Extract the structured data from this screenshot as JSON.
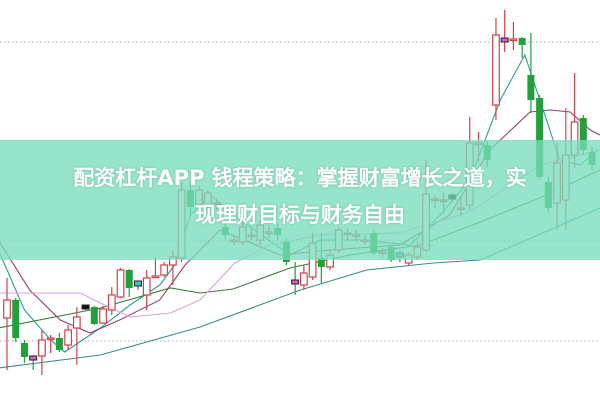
{
  "title": {
    "line1": "配资杠杆APP 钱程策略：掌握财富增长之道，实",
    "line2": "现理财目标与财务自由"
  },
  "colors": {
    "up": "#d8404c",
    "down": "#22a03c",
    "band": "#8fe0c8",
    "title_text": "#ffffff",
    "grid": "#aaaaaa"
  },
  "chart_data": {
    "type": "candlestick",
    "title": "",
    "xlabel": "",
    "ylabel": "",
    "ylim": [
      0,
      400
    ],
    "grid": "horizontal-dotted",
    "grid_levels": [
      358,
      259,
      159,
      59
    ],
    "candles": [
      [
        82,
        122,
        30,
        100
      ],
      [
        100,
        102,
        58,
        62
      ],
      [
        57,
        60,
        37,
        43
      ],
      [
        42,
        45,
        30,
        41,
        "pink"
      ],
      [
        44,
        70,
        25,
        60
      ],
      [
        61,
        65,
        47,
        62
      ],
      [
        62,
        67,
        48,
        50
      ],
      [
        55,
        75,
        50,
        70
      ],
      [
        72,
        93,
        35,
        83
      ],
      [
        93,
        95,
        90,
        92,
        "black"
      ],
      [
        93,
        94,
        75,
        76
      ],
      [
        77,
        94,
        76,
        91
      ],
      [
        90,
        113,
        85,
        105
      ],
      [
        103,
        132,
        102,
        130
      ],
      [
        130,
        131,
        103,
        112
      ],
      [
        117,
        118,
        110,
        112,
        "cyan"
      ],
      [
        105,
        130,
        90,
        122
      ],
      [
        123,
        143,
        122,
        124
      ],
      [
        125,
        138,
        123,
        135
      ],
      [
        135,
        150,
        115,
        143
      ],
      [
        142,
        218,
        138,
        210
      ],
      [
        210,
        218,
        185,
        193
      ],
      [
        195,
        215,
        190,
        210
      ],
      [
        195,
        210,
        190,
        207
      ],
      [
        197,
        202,
        190,
        197
      ],
      [
        173,
        178,
        160,
        165
      ],
      [
        160,
        165,
        155,
        160
      ],
      [
        158,
        178,
        155,
        173
      ],
      [
        165,
        172,
        160,
        165
      ],
      [
        160,
        180,
        155,
        175
      ],
      [
        168,
        175,
        162,
        168
      ],
      [
        172,
        176,
        160,
        165
      ],
      [
        158,
        162,
        135,
        138
      ],
      [
        118,
        138,
        105,
        117,
        "pink"
      ],
      [
        115,
        135,
        110,
        127
      ],
      [
        123,
        167,
        120,
        157
      ],
      [
        142,
        167,
        117,
        133
      ],
      [
        133,
        150,
        130,
        145
      ],
      [
        150,
        173,
        147,
        170
      ],
      [
        167,
        172,
        160,
        167
      ],
      [
        165,
        170,
        158,
        165
      ],
      [
        160,
        165,
        155,
        160
      ],
      [
        167,
        170,
        145,
        147
      ],
      [
        148,
        152,
        143,
        148
      ],
      [
        153,
        155,
        138,
        140
      ],
      [
        145,
        150,
        138,
        145,
        "cyan"
      ],
      [
        137,
        148,
        135,
        145
      ],
      [
        143,
        158,
        140,
        153
      ],
      [
        150,
        240,
        148,
        206
      ],
      [
        201,
        205,
        192,
        201
      ],
      [
        200,
        207,
        187,
        200
      ],
      [
        203,
        207,
        198,
        203,
        "black"
      ],
      [
        192,
        203,
        183,
        192
      ],
      [
        195,
        283,
        190,
        257
      ],
      [
        257,
        268,
        238,
        257
      ],
      [
        255,
        260,
        233,
        240
      ],
      [
        295,
        382,
        280,
        365
      ],
      [
        360,
        390,
        348,
        360,
        "pink"
      ],
      [
        361,
        378,
        350,
        361
      ],
      [
        362,
        363,
        342,
        355
      ],
      [
        325,
        367,
        287,
        300
      ],
      [
        302,
        305,
        220,
        223
      ],
      [
        218,
        223,
        188,
        192
      ],
      [
        197,
        257,
        170,
        237
      ],
      [
        200,
        292,
        170,
        245
      ],
      [
        245,
        327,
        232,
        278
      ],
      [
        282,
        285,
        245,
        250
      ],
      [
        248,
        253,
        230,
        235
      ]
    ],
    "candle_fields": [
      "open",
      "high",
      "low",
      "close",
      "marker"
    ],
    "moving_averages": [
      {
        "color": "#2a9d8f",
        "points": [
          [
            -1,
            150
          ],
          [
            2,
            90
          ],
          [
            5,
            60
          ],
          [
            6.6,
            48
          ],
          [
            10.7,
            72
          ],
          [
            14.1,
            95
          ],
          [
            17.5,
            115
          ],
          [
            19.2,
            135
          ],
          [
            21,
            185
          ],
          [
            23.3,
            205
          ],
          [
            26.7,
            180
          ],
          [
            32.4,
            145
          ],
          [
            35.9,
            160
          ],
          [
            40.4,
            160
          ],
          [
            46.2,
            155
          ],
          [
            49.6,
            185
          ],
          [
            53,
            220
          ],
          [
            56.5,
            300
          ],
          [
            59.3,
            345
          ],
          [
            61.6,
            285
          ],
          [
            63.3,
            240
          ],
          [
            65.6,
            235
          ],
          [
            67.7,
            250
          ]
        ]
      },
      {
        "color": "#9b3a74",
        "points": [
          [
            -1,
            160
          ],
          [
            2.6,
            110
          ],
          [
            6.1,
            80
          ],
          [
            9.5,
            67
          ],
          [
            12.9,
            80
          ],
          [
            17.5,
            100
          ],
          [
            20.4,
            135
          ],
          [
            24.4,
            170
          ],
          [
            31.3,
            145
          ],
          [
            37,
            150
          ],
          [
            45,
            155
          ],
          [
            50.7,
            185
          ],
          [
            55.3,
            250
          ],
          [
            59.9,
            288
          ],
          [
            62.2,
            290
          ],
          [
            64.5,
            288
          ],
          [
            66.8,
            270
          ],
          [
            67.9,
            265
          ]
        ]
      },
      {
        "color": "#3c7a3c",
        "points": [
          [
            -1,
            72
          ],
          [
            10.7,
            92
          ],
          [
            18.7,
            112
          ],
          [
            22.1,
            107
          ],
          [
            25.9,
            111
          ],
          [
            32.4,
            132
          ],
          [
            39.3,
            145
          ],
          [
            47.3,
            155
          ],
          [
            54.2,
            178
          ],
          [
            61,
            202
          ],
          [
            67.9,
            230
          ]
        ]
      },
      {
        "color": "#dba4de",
        "points": [
          [
            -1,
            107
          ],
          [
            8.4,
            107
          ],
          [
            10.7,
            97
          ],
          [
            14.1,
            83
          ],
          [
            18.7,
            87
          ],
          [
            22.1,
            100
          ],
          [
            26.1,
            137
          ],
          [
            30.1,
            155
          ],
          [
            35.9,
            165
          ],
          [
            45,
            167
          ],
          [
            53,
            188
          ],
          [
            61,
            235
          ],
          [
            67.9,
            250
          ]
        ]
      },
      {
        "color": "#3b8c8c",
        "points": [
          [
            -1,
            32
          ],
          [
            10.7,
            45
          ],
          [
            22.1,
            73
          ],
          [
            33.6,
            110
          ],
          [
            41.2,
            130
          ],
          [
            48.8,
            137
          ],
          [
            54.2,
            140
          ],
          [
            60.3,
            163
          ],
          [
            67.9,
            192
          ]
        ]
      }
    ]
  }
}
